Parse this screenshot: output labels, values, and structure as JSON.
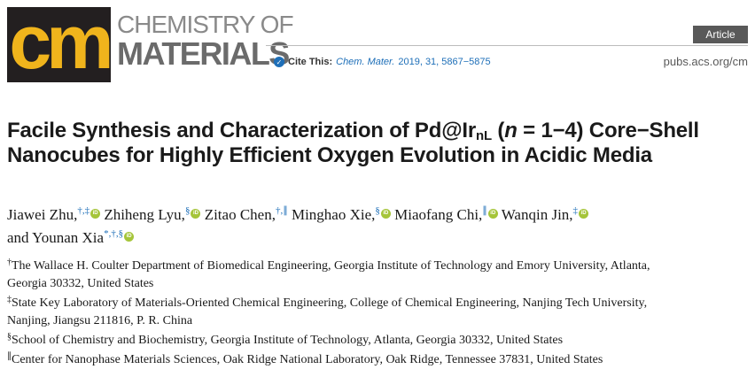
{
  "header": {
    "logo_letters": "cm",
    "journal_name_line1": "CHEMISTRY OF",
    "journal_name_line2": "MATERIALS",
    "article_type": "Article",
    "cite_label": "Cite This:",
    "cite_journal": "Chem. Mater.",
    "cite_details": "2019, 31, 5867−5875",
    "url": "pubs.acs.org/cm",
    "colors": {
      "logo_bg": "#231f20",
      "logo_text": "#f0b41c",
      "badge_bg": "#595959",
      "link": "#1e6fb8",
      "orcid": "#a5c53a"
    },
    "icons": {
      "cite_check": "check-circle-icon",
      "orcid": "orcid-icon"
    }
  },
  "title": {
    "part1": "Facile Synthesis and Characterization of Pd@Ir",
    "sub": "nL",
    "part2": " (",
    "n_italic": "n",
    "part3": " = 1−4) Core−Shell Nanocubes for Highly Efficient Oxygen Evolution in Acidic Media"
  },
  "authors": [
    {
      "name": "Jiawei Zhu,",
      "sup": "†,‡",
      "orcid": true,
      "suffix": ""
    },
    {
      "name": "Zhiheng Lyu,",
      "sup": "§",
      "orcid": true,
      "suffix": ""
    },
    {
      "name": "Zitao Chen,",
      "sup": "†,∥",
      "orcid": false,
      "suffix": ""
    },
    {
      "name": "Minghao Xie,",
      "sup": "§",
      "orcid": true,
      "suffix": ""
    },
    {
      "name": "Miaofang Chi,",
      "sup": "∥",
      "orcid": true,
      "suffix": ""
    },
    {
      "name": "Wanqin Jin,",
      "sup": "‡",
      "orcid": true,
      "suffix": ""
    },
    {
      "name": "and Younan Xia",
      "sup": "*,†,§",
      "orcid": true,
      "suffix": ""
    }
  ],
  "affiliations": [
    {
      "mark": "†",
      "text": "The Wallace H. Coulter Department of Biomedical Engineering, Georgia Institute of Technology and Emory University, Atlanta,",
      "cont": "Georgia 30332, United States"
    },
    {
      "mark": "‡",
      "text": "State Key Laboratory of Materials-Oriented Chemical Engineering, College of Chemical Engineering, Nanjing Tech University,",
      "cont": "Nanjing, Jiangsu 211816, P. R. China"
    },
    {
      "mark": "§",
      "text": "School of Chemistry and Biochemistry, Georgia Institute of Technology, Atlanta, Georgia 30332, United States",
      "cont": ""
    },
    {
      "mark": "∥",
      "text": "Center for Nanophase Materials Sciences, Oak Ridge National Laboratory, Oak Ridge, Tennessee 37831, United States",
      "cont": ""
    }
  ]
}
